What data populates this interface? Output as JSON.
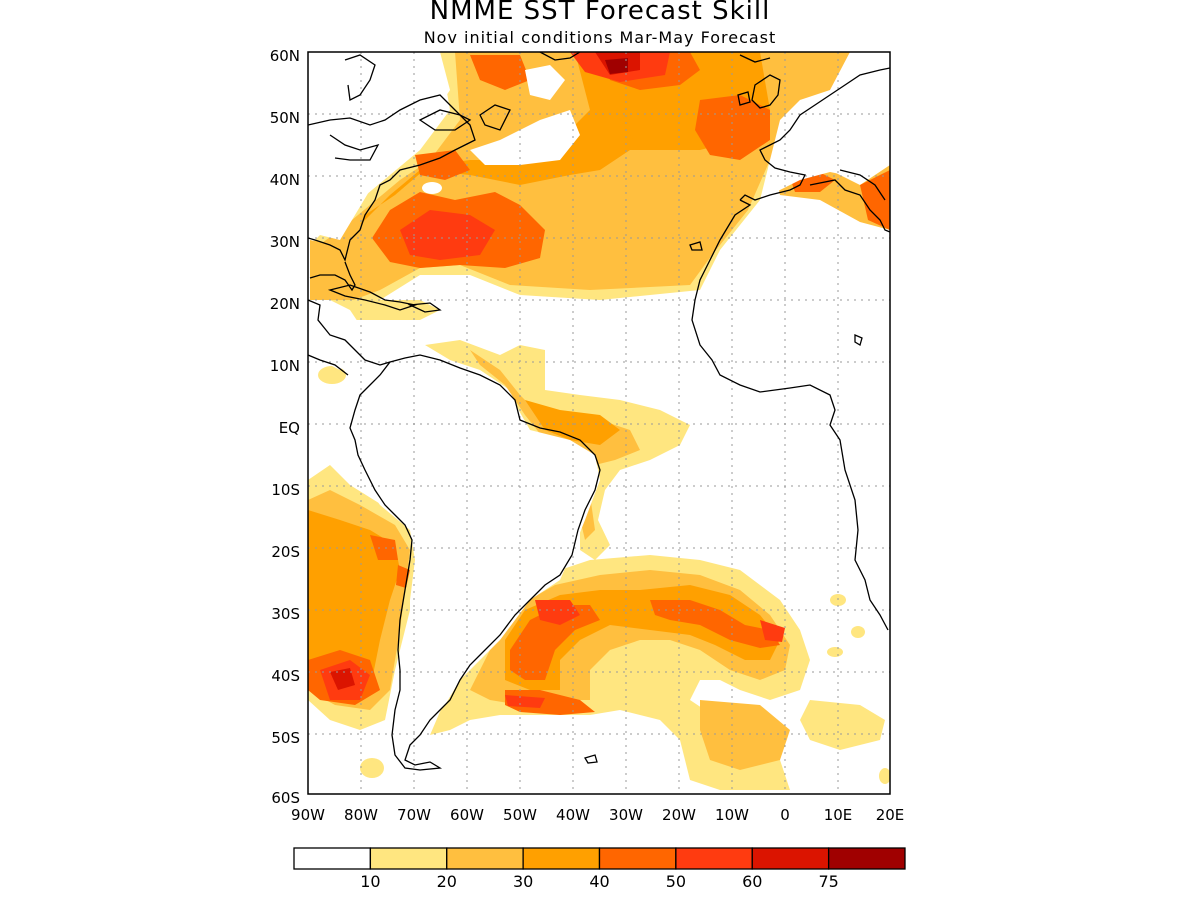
{
  "title": "NMME SST Forecast Skill",
  "subtitle": "Nov initial conditions  Mar-May Forecast",
  "map": {
    "lon_range": [
      -90,
      20
    ],
    "lat_range": [
      -60,
      60
    ],
    "lat_labels": [
      "60N",
      "50N",
      "40N",
      "30N",
      "20N",
      "10N",
      "EQ",
      "10S",
      "20S",
      "30S",
      "40S",
      "50S",
      "60S"
    ],
    "lon_labels": [
      "90W",
      "80W",
      "70W",
      "60W",
      "50W",
      "40W",
      "30W",
      "20W",
      "10W",
      "0",
      "10E",
      "20E"
    ],
    "grid": true
  },
  "colorbar": {
    "levels": [
      "10",
      "20",
      "30",
      "40",
      "50",
      "60",
      "75"
    ],
    "colors": [
      "#ffffff",
      "#ffe680",
      "#ffbf3f",
      "#ffa000",
      "#ff6600",
      "#ff3b10",
      "#db1400",
      "#a00000"
    ]
  }
}
